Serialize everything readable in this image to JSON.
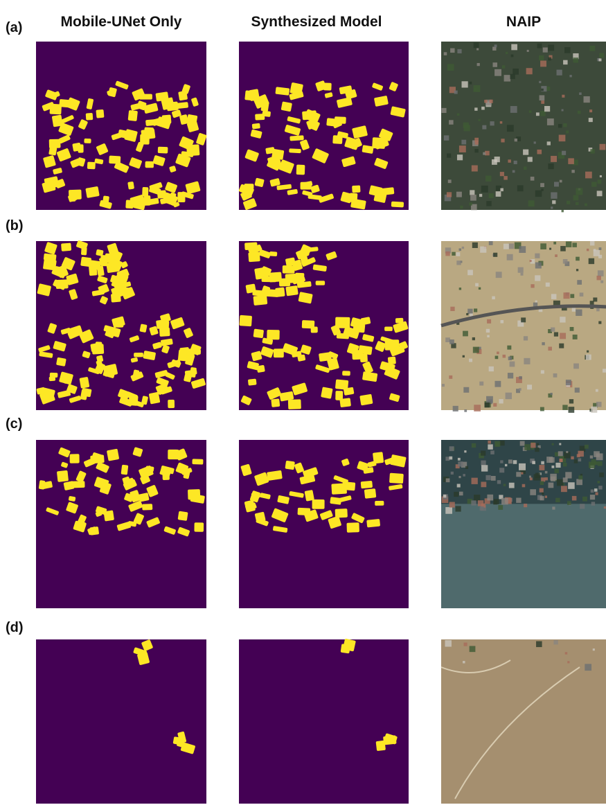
{
  "header": {
    "columns": [
      "Mobile-UNet Only",
      "Synthesized Model",
      "NAIP"
    ]
  },
  "rows": [
    {
      "label": "(a)"
    },
    {
      "label": "(b)"
    },
    {
      "label": "(c)"
    },
    {
      "label": "(d)"
    }
  ]
}
